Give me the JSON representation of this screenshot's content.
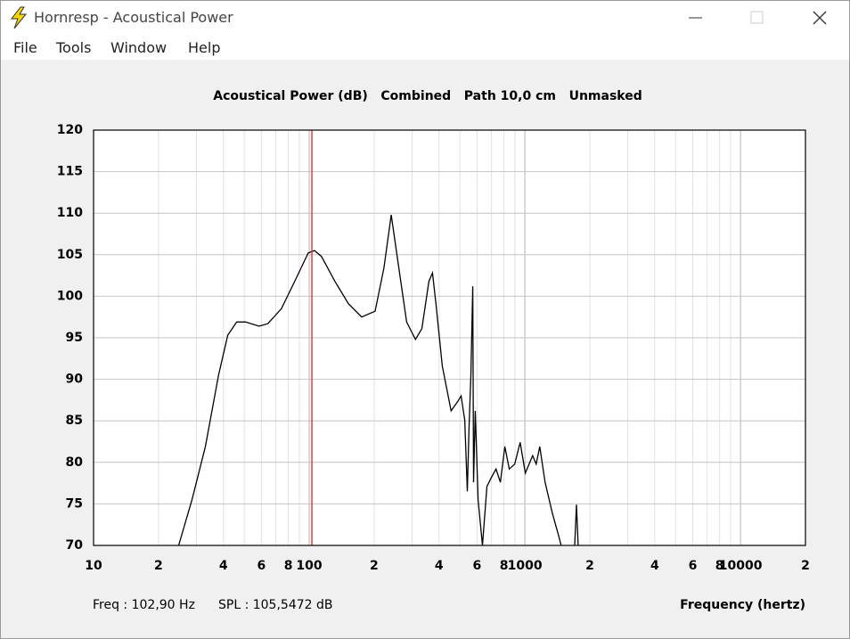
{
  "window": {
    "title": "Hornresp - Acoustical Power",
    "menu": [
      "File",
      "Tools",
      "Window",
      "Help"
    ]
  },
  "chart_data": {
    "type": "line",
    "title": "Acoustical Power (dB)   Combined   Path 10,0 cm   Unmasked",
    "x_label": "Frequency (hertz)",
    "xscale": "log",
    "xlim": [
      10,
      20000
    ],
    "ylim": [
      70,
      120
    ],
    "yticks": [
      70,
      75,
      80,
      85,
      90,
      95,
      100,
      105,
      110,
      115,
      120
    ],
    "xticks": [
      {
        "value": 10,
        "label": "10"
      },
      {
        "value": 20,
        "label": "2"
      },
      {
        "value": 40,
        "label": "4"
      },
      {
        "value": 60,
        "label": "6"
      },
      {
        "value": 80,
        "label": "8"
      },
      {
        "value": 100,
        "label": "100"
      },
      {
        "value": 200,
        "label": "2"
      },
      {
        "value": 400,
        "label": "4"
      },
      {
        "value": 600,
        "label": "6"
      },
      {
        "value": 800,
        "label": "8"
      },
      {
        "value": 1000,
        "label": "1000"
      },
      {
        "value": 2000,
        "label": "2"
      },
      {
        "value": 4000,
        "label": "4"
      },
      {
        "value": 6000,
        "label": "6"
      },
      {
        "value": 8000,
        "label": "8"
      },
      {
        "value": 10000,
        "label": "10000"
      },
      {
        "value": 20000,
        "label": "2"
      }
    ],
    "xminor_ticks": [
      30,
      50,
      70,
      90,
      300,
      500,
      700,
      900,
      3000,
      5000,
      7000,
      9000
    ],
    "grid": true,
    "cursor_x": 102.9,
    "cursor_color": "#e02020",
    "readout": [
      "Freq : 102,90 Hz",
      "SPL : 105,5472 dB"
    ],
    "series": [
      {
        "name": "Acoustical Power",
        "color": "#000000",
        "x": [
          24.8,
          28.6,
          33.0,
          38.0,
          41.9,
          46.1,
          50.7,
          58.5,
          64.3,
          74.3,
          85.7,
          98.9,
          105.7,
          114,
          131.5,
          152,
          175,
          202,
          222,
          240,
          257,
          283,
          311,
          333,
          359,
          373,
          387,
          414,
          455,
          487,
          506,
          526,
          541,
          551,
          562,
          573,
          578,
          589,
          607,
          636,
          667,
          700,
          735,
          770,
          807,
          847,
          897,
          951,
          1005,
          1086,
          1128,
          1172,
          1241,
          1340,
          1433,
          1473,
          1600,
          1702,
          1734,
          1766
        ],
        "values": [
          70,
          75.5,
          81.9,
          90.5,
          95.3,
          96.9,
          96.9,
          96.4,
          96.7,
          98.5,
          101.8,
          105.2,
          105.5,
          104.8,
          101.8,
          99.1,
          97.5,
          98.2,
          103.4,
          109.8,
          104.4,
          96.9,
          94.8,
          96.1,
          101.8,
          102.8,
          99.1,
          91.6,
          86.2,
          87.3,
          88.0,
          85.1,
          76.5,
          84.1,
          90.5,
          101.2,
          77.6,
          86.2,
          75.5,
          70,
          77.1,
          78.2,
          79.2,
          77.6,
          81.9,
          79.2,
          79.8,
          82.4,
          78.7,
          80.8,
          79.8,
          81.9,
          77.6,
          73.9,
          71.2,
          70,
          null,
          70,
          74.9,
          70
        ]
      }
    ]
  }
}
